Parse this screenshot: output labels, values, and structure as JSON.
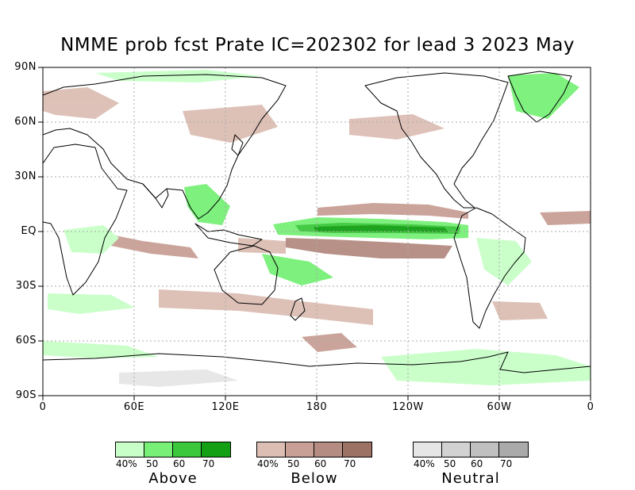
{
  "title": "NMME prob fcst Prate IC=202302 for lead 3 2023 May",
  "y_labels": [
    "90N",
    "60N",
    "30N",
    "EQ",
    "30S",
    "60S",
    "90S"
  ],
  "x_labels": [
    "0",
    "60E",
    "120E",
    "180",
    "120W",
    "60W",
    "0"
  ],
  "legends": [
    {
      "name": "Above",
      "ticks": [
        "40%",
        "50",
        "60",
        "70"
      ],
      "colors": [
        "#c8ffc8",
        "#78f078",
        "#3cc83c",
        "#14a014"
      ]
    },
    {
      "name": "Below",
      "ticks": [
        "40%",
        "50",
        "60",
        "70"
      ],
      "colors": [
        "#dcbeb4",
        "#c8a096",
        "#b48c82",
        "#9c7264"
      ]
    },
    {
      "name": "Neutral",
      "ticks": [
        "40%",
        "50",
        "60",
        "70"
      ],
      "colors": [
        "#e6e6e6",
        "#d2d2d2",
        "#c0c0c0",
        "#aaaaaa"
      ]
    }
  ],
  "colors": {
    "above_40": "#c8ffc8",
    "above_50": "#78f078",
    "above_60": "#3cc83c",
    "above_70": "#14a014",
    "below_40": "#dcbeb4",
    "below_50": "#c8a096",
    "below_60": "#b48c82",
    "below_70": "#9c7264",
    "neutral_40": "#e6e6e6",
    "coast": "#000000",
    "grid": "#aaaaaa"
  }
}
